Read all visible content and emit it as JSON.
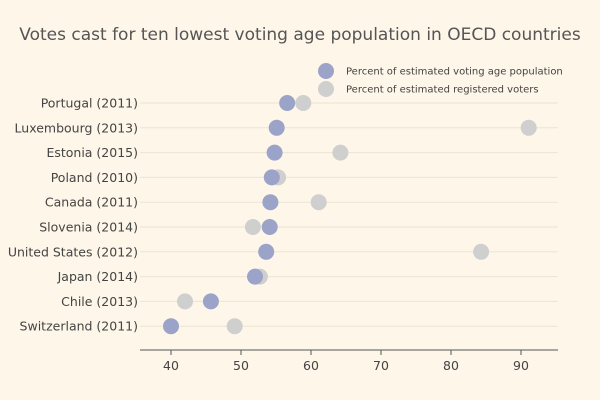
{
  "chart_data": {
    "type": "scatter",
    "title": "Votes cast for ten lowest voting age population in OECD countries",
    "categories": [
      "Portugal (2011)",
      "Luxembourg (2013)",
      "Estonia (2015)",
      "Poland (2010)",
      "Canada (2011)",
      "Slovenia (2014)",
      "United States (2012)",
      "Japan (2014)",
      "Chile (2013)",
      "Switzerland (2011)"
    ],
    "series": [
      {
        "name": "Percent of estimated voting age population",
        "color": "#9ba3c9",
        "values": [
          56.6,
          55.1,
          54.8,
          54.4,
          54.2,
          54.1,
          53.6,
          52.0,
          45.7,
          40.0
        ]
      },
      {
        "name": "Percent of estimated registered voters",
        "color": "#cfcfcf",
        "values": [
          58.9,
          91.1,
          64.2,
          55.3,
          61.1,
          51.7,
          84.3,
          52.7,
          42.0,
          49.1
        ]
      }
    ],
    "xlim": [
      35,
      95
    ],
    "xticks": [
      40,
      50,
      60,
      70,
      80,
      90
    ],
    "xlabel": "",
    "ylabel": "",
    "grid": true,
    "legend_position": "top-right"
  }
}
